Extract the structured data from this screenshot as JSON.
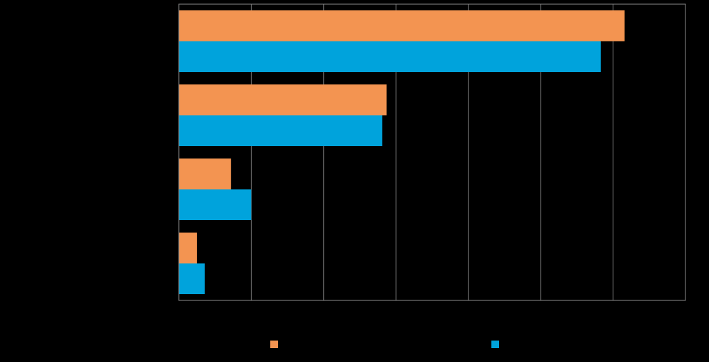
{
  "chart_data": {
    "type": "bar",
    "orientation": "horizontal",
    "categories": [
      "",
      "",
      "",
      ""
    ],
    "series": [
      {
        "color": "#f39451",
        "values": [
          61.6,
          28.7,
          7.2,
          2.5
        ]
      },
      {
        "color": "#00a3dc",
        "values": [
          58.3,
          28.1,
          10.0,
          3.6
        ]
      }
    ],
    "xlim": [
      0,
      70
    ],
    "grid": true,
    "legend_position": "bottom"
  }
}
